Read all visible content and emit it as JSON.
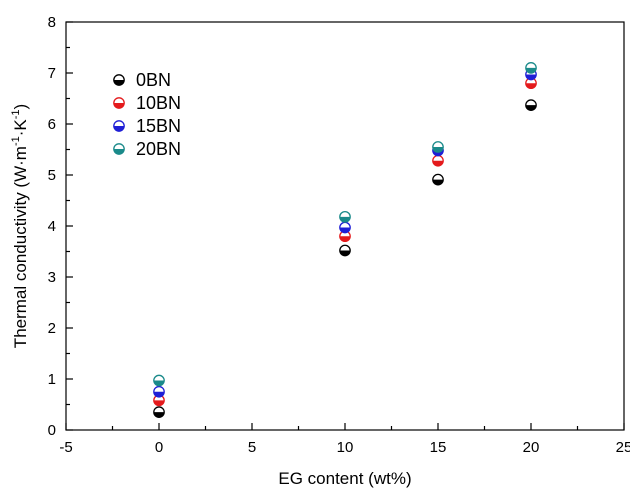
{
  "chart_data": {
    "type": "scatter",
    "xlabel": "EG content (wt%)",
    "ylabel_parts": {
      "main": "Thermal conductivity (W·m",
      "sup1": "-1",
      "mid": "·K",
      "sup2": "-1",
      "end": ")"
    },
    "xlim": [
      -5,
      25
    ],
    "ylim": [
      0,
      8
    ],
    "x_ticks": [
      "-5",
      "0",
      "5",
      "10",
      "15",
      "20",
      "25"
    ],
    "y_ticks": [
      "0",
      "1",
      "2",
      "3",
      "4",
      "5",
      "6",
      "7",
      "8"
    ],
    "legend_position": "upper-left",
    "series": [
      {
        "name": "0BN",
        "color": "#000000",
        "x": [
          0,
          10,
          15,
          20
        ],
        "y": [
          0.35,
          3.52,
          4.91,
          6.37
        ]
      },
      {
        "name": "10BN",
        "color": "#e41a1c",
        "x": [
          0,
          10,
          15,
          20
        ],
        "y": [
          0.58,
          3.8,
          5.28,
          6.8
        ]
      },
      {
        "name": "15BN",
        "color": "#1f1fd6",
        "x": [
          0,
          10,
          15,
          20
        ],
        "y": [
          0.75,
          3.97,
          5.48,
          6.97
        ]
      },
      {
        "name": "20BN",
        "color": "#1a8a8a",
        "x": [
          0,
          10,
          15,
          20
        ],
        "y": [
          0.97,
          4.18,
          5.55,
          7.1
        ]
      }
    ]
  }
}
